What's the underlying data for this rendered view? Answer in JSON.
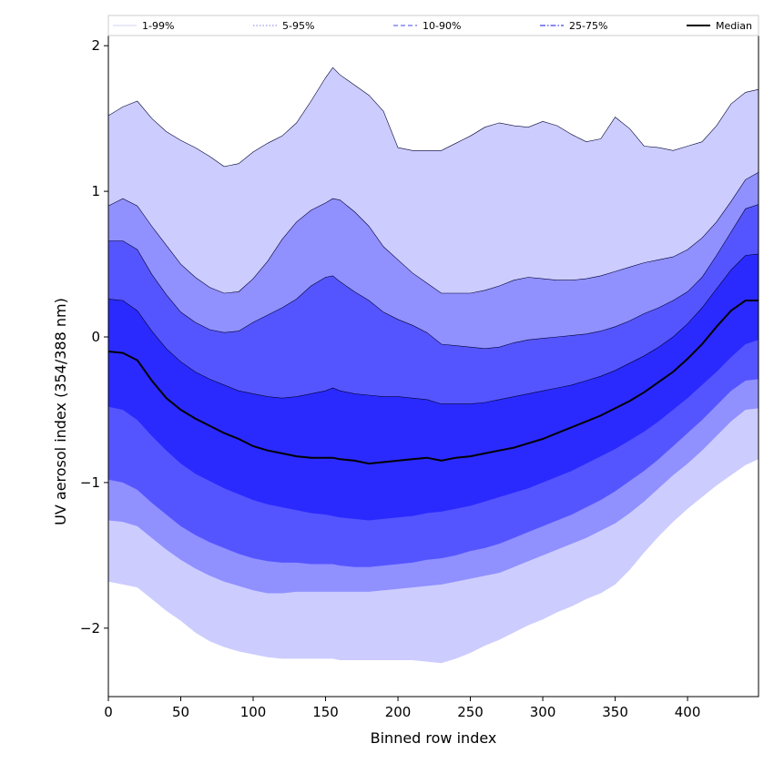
{
  "chart_data": {
    "type": "area",
    "xlabel": "Binned row index",
    "ylabel": "UV aerosol index (354/388 nm)",
    "xlim": [
      0,
      449
    ],
    "ylim": [
      -2.47,
      2.07
    ],
    "xticks": [
      0,
      50,
      100,
      150,
      200,
      250,
      300,
      350,
      400
    ],
    "yticks": [
      -2,
      -1,
      0,
      1,
      2
    ],
    "ytick_labels": [
      "−2",
      "−1",
      "0",
      "1",
      "2"
    ],
    "legend_position": "top",
    "legend": [
      {
        "label": "1-99%",
        "color": "#dcdcf6",
        "style": "solid"
      },
      {
        "label": "5-95%",
        "color": "#9b9bf0",
        "style": "dotted"
      },
      {
        "label": "10-90%",
        "color": "#6a6af2",
        "style": "dashed"
      },
      {
        "label": "25-75%",
        "color": "#4444ee",
        "style": "dashdot"
      },
      {
        "label": "Median",
        "color": "#000000",
        "style": "solid"
      }
    ],
    "x": [
      0,
      10,
      20,
      30,
      40,
      50,
      60,
      70,
      80,
      90,
      100,
      110,
      120,
      130,
      140,
      150,
      155,
      160,
      170,
      180,
      190,
      200,
      210,
      220,
      230,
      240,
      250,
      260,
      270,
      280,
      290,
      300,
      310,
      320,
      330,
      340,
      350,
      360,
      370,
      380,
      390,
      400,
      410,
      420,
      430,
      440,
      449
    ],
    "bands": [
      {
        "name": "1-99%",
        "color": "#ccccff",
        "upper": [
          1.52,
          1.58,
          1.62,
          1.5,
          1.41,
          1.35,
          1.3,
          1.24,
          1.17,
          1.19,
          1.27,
          1.33,
          1.38,
          1.47,
          1.62,
          1.78,
          1.85,
          1.8,
          1.73,
          1.66,
          1.55,
          1.3,
          1.28,
          1.28,
          1.28,
          1.33,
          1.38,
          1.44,
          1.47,
          1.45,
          1.44,
          1.48,
          1.45,
          1.39,
          1.34,
          1.36,
          1.51,
          1.43,
          1.31,
          1.3,
          1.28,
          1.31,
          1.34,
          1.45,
          1.6,
          1.68,
          1.7
        ],
        "lower": [
          -1.68,
          -1.7,
          -1.72,
          -1.8,
          -1.88,
          -1.95,
          -2.03,
          -2.09,
          -2.13,
          -2.16,
          -2.18,
          -2.2,
          -2.21,
          -2.21,
          -2.21,
          -2.21,
          -2.21,
          -2.22,
          -2.22,
          -2.22,
          -2.22,
          -2.22,
          -2.22,
          -2.23,
          -2.24,
          -2.21,
          -2.17,
          -2.12,
          -2.08,
          -2.03,
          -1.98,
          -1.94,
          -1.89,
          -1.85,
          -1.8,
          -1.76,
          -1.7,
          -1.6,
          -1.48,
          -1.37,
          -1.27,
          -1.18,
          -1.1,
          -1.02,
          -0.95,
          -0.88,
          -0.84
        ]
      },
      {
        "name": "5-95%",
        "color": "#9090ff",
        "upper": [
          0.9,
          0.95,
          0.9,
          0.76,
          0.63,
          0.5,
          0.41,
          0.34,
          0.3,
          0.31,
          0.4,
          0.52,
          0.67,
          0.79,
          0.87,
          0.92,
          0.95,
          0.94,
          0.86,
          0.76,
          0.62,
          0.53,
          0.44,
          0.37,
          0.3,
          0.3,
          0.3,
          0.32,
          0.35,
          0.39,
          0.41,
          0.4,
          0.39,
          0.39,
          0.4,
          0.42,
          0.45,
          0.48,
          0.51,
          0.53,
          0.55,
          0.6,
          0.68,
          0.79,
          0.93,
          1.08,
          1.13
        ],
        "lower": [
          -1.26,
          -1.27,
          -1.3,
          -1.38,
          -1.46,
          -1.53,
          -1.59,
          -1.64,
          -1.68,
          -1.71,
          -1.74,
          -1.76,
          -1.76,
          -1.75,
          -1.75,
          -1.75,
          -1.75,
          -1.75,
          -1.75,
          -1.75,
          -1.74,
          -1.73,
          -1.72,
          -1.71,
          -1.7,
          -1.68,
          -1.66,
          -1.64,
          -1.62,
          -1.58,
          -1.54,
          -1.5,
          -1.46,
          -1.42,
          -1.38,
          -1.33,
          -1.28,
          -1.21,
          -1.13,
          -1.04,
          -0.95,
          -0.87,
          -0.78,
          -0.68,
          -0.58,
          -0.5,
          -0.49
        ]
      },
      {
        "name": "10-90%",
        "color": "#5555ff",
        "upper": [
          0.66,
          0.66,
          0.6,
          0.43,
          0.29,
          0.17,
          0.1,
          0.05,
          0.03,
          0.04,
          0.1,
          0.15,
          0.2,
          0.26,
          0.35,
          0.41,
          0.42,
          0.38,
          0.31,
          0.25,
          0.17,
          0.12,
          0.08,
          0.03,
          -0.05,
          -0.06,
          -0.07,
          -0.08,
          -0.07,
          -0.04,
          -0.02,
          -0.01,
          0,
          0.01,
          0.02,
          0.04,
          0.07,
          0.11,
          0.16,
          0.2,
          0.25,
          0.31,
          0.41,
          0.56,
          0.72,
          0.88,
          0.91
        ],
        "lower": [
          -0.98,
          -1.0,
          -1.05,
          -1.14,
          -1.22,
          -1.3,
          -1.36,
          -1.41,
          -1.45,
          -1.49,
          -1.52,
          -1.54,
          -1.55,
          -1.55,
          -1.56,
          -1.56,
          -1.56,
          -1.57,
          -1.58,
          -1.58,
          -1.57,
          -1.56,
          -1.55,
          -1.53,
          -1.52,
          -1.5,
          -1.47,
          -1.45,
          -1.42,
          -1.38,
          -1.34,
          -1.3,
          -1.26,
          -1.22,
          -1.17,
          -1.12,
          -1.06,
          -0.99,
          -0.92,
          -0.84,
          -0.75,
          -0.66,
          -0.57,
          -0.47,
          -0.37,
          -0.3,
          -0.29
        ]
      },
      {
        "name": "25-75%",
        "color": "#2a2aff",
        "upper": [
          0.26,
          0.25,
          0.18,
          0.04,
          -0.08,
          -0.17,
          -0.24,
          -0.29,
          -0.33,
          -0.37,
          -0.39,
          -0.41,
          -0.42,
          -0.41,
          -0.39,
          -0.37,
          -0.35,
          -0.37,
          -0.39,
          -0.4,
          -0.41,
          -0.41,
          -0.42,
          -0.43,
          -0.46,
          -0.46,
          -0.46,
          -0.45,
          -0.43,
          -0.41,
          -0.39,
          -0.37,
          -0.35,
          -0.33,
          -0.3,
          -0.27,
          -0.23,
          -0.18,
          -0.13,
          -0.07,
          0,
          0.09,
          0.2,
          0.33,
          0.46,
          0.56,
          0.57
        ],
        "lower": [
          -0.48,
          -0.5,
          -0.57,
          -0.68,
          -0.78,
          -0.87,
          -0.94,
          -0.99,
          -1.04,
          -1.08,
          -1.12,
          -1.15,
          -1.17,
          -1.19,
          -1.21,
          -1.22,
          -1.23,
          -1.24,
          -1.25,
          -1.26,
          -1.25,
          -1.24,
          -1.23,
          -1.21,
          -1.2,
          -1.18,
          -1.16,
          -1.13,
          -1.1,
          -1.07,
          -1.04,
          -1.0,
          -0.96,
          -0.92,
          -0.87,
          -0.82,
          -0.77,
          -0.71,
          -0.65,
          -0.58,
          -0.5,
          -0.42,
          -0.33,
          -0.24,
          -0.14,
          -0.05,
          -0.02
        ]
      }
    ],
    "series": [
      {
        "name": "Median",
        "color": "#000000",
        "values": [
          -0.1,
          -0.11,
          -0.16,
          -0.3,
          -0.42,
          -0.5,
          -0.56,
          -0.61,
          -0.66,
          -0.7,
          -0.75,
          -0.78,
          -0.8,
          -0.82,
          -0.83,
          -0.83,
          -0.83,
          -0.84,
          -0.85,
          -0.87,
          -0.86,
          -0.85,
          -0.84,
          -0.83,
          -0.85,
          -0.83,
          -0.82,
          -0.8,
          -0.78,
          -0.76,
          -0.73,
          -0.7,
          -0.66,
          -0.62,
          -0.58,
          -0.54,
          -0.49,
          -0.44,
          -0.38,
          -0.31,
          -0.24,
          -0.15,
          -0.05,
          0.07,
          0.18,
          0.25,
          0.25
        ]
      }
    ]
  }
}
